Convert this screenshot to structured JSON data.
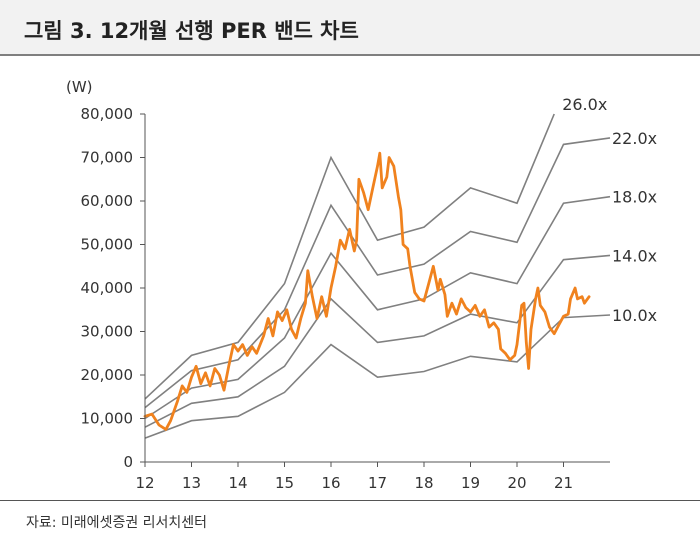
{
  "header": {
    "title": "그림 3. 12개월 선행 PER 밴드 차트"
  },
  "source": {
    "text": "자료: 미래에셋증권 리서치센터"
  },
  "chart_data": {
    "type": "line",
    "ylabel": "(W)",
    "xlim": [
      12,
      22
    ],
    "ylim": [
      0,
      80000
    ],
    "x_ticks": [
      12,
      13,
      14,
      15,
      16,
      17,
      18,
      19,
      20,
      21
    ],
    "x_tick_labels": [
      "12",
      "13",
      "14",
      "15",
      "16",
      "17",
      "18",
      "19",
      "20",
      "21"
    ],
    "y_ticks": [
      0,
      10000,
      20000,
      30000,
      40000,
      50000,
      60000,
      70000,
      80000
    ],
    "y_tick_labels": [
      "0",
      "10,000",
      "20,000",
      "30,000",
      "40,000",
      "50,000",
      "60,000",
      "70,000",
      "80,000"
    ],
    "grid": false,
    "band_color": "#808080",
    "price_color": "#f0821e",
    "bands": [
      {
        "name": "26.0x",
        "points": [
          [
            12,
            14500
          ],
          [
            13,
            24500
          ],
          [
            14,
            27500
          ],
          [
            15,
            41000
          ],
          [
            16,
            70000
          ],
          [
            17,
            51000
          ],
          [
            18,
            54000
          ],
          [
            19,
            63000
          ],
          [
            20,
            59500
          ],
          [
            20.8,
            80000
          ]
        ]
      },
      {
        "name": "22.0x",
        "points": [
          [
            12,
            12500
          ],
          [
            13,
            21000
          ],
          [
            14,
            23500
          ],
          [
            15,
            35000
          ],
          [
            16,
            59000
          ],
          [
            17,
            43000
          ],
          [
            18,
            45500
          ],
          [
            19,
            53000
          ],
          [
            20,
            50500
          ],
          [
            21,
            73000
          ],
          [
            22,
            74500
          ]
        ]
      },
      {
        "name": "18.0x",
        "points": [
          [
            12,
            10000
          ],
          [
            13,
            17000
          ],
          [
            14,
            19000
          ],
          [
            15,
            28500
          ],
          [
            16,
            48000
          ],
          [
            17,
            35000
          ],
          [
            18,
            37500
          ],
          [
            19,
            43500
          ],
          [
            20,
            41000
          ],
          [
            21,
            59500
          ],
          [
            22,
            61000
          ]
        ]
      },
      {
        "name": "14.0x",
        "points": [
          [
            12,
            8000
          ],
          [
            13,
            13500
          ],
          [
            14,
            15000
          ],
          [
            15,
            22000
          ],
          [
            16,
            37500
          ],
          [
            17,
            27500
          ],
          [
            18,
            29000
          ],
          [
            19,
            34000
          ],
          [
            20,
            32000
          ],
          [
            21,
            46500
          ],
          [
            22,
            47500
          ]
        ]
      },
      {
        "name": "10.0x",
        "points": [
          [
            12,
            5500
          ],
          [
            13,
            9500
          ],
          [
            14,
            10500
          ],
          [
            15,
            16000
          ],
          [
            16,
            27000
          ],
          [
            17,
            19500
          ],
          [
            18,
            20800
          ],
          [
            19,
            24300
          ],
          [
            20,
            23000
          ],
          [
            21,
            33200
          ],
          [
            22,
            33800
          ]
        ]
      }
    ],
    "series": [
      {
        "name": "",
        "points": [
          [
            12.0,
            10500
          ],
          [
            12.15,
            11000
          ],
          [
            12.3,
            8500
          ],
          [
            12.45,
            7500
          ],
          [
            12.55,
            9500
          ],
          [
            12.7,
            14000
          ],
          [
            12.8,
            17500
          ],
          [
            12.9,
            16000
          ],
          [
            13.0,
            19500
          ],
          [
            13.1,
            22000
          ],
          [
            13.2,
            18000
          ],
          [
            13.3,
            20500
          ],
          [
            13.4,
            17500
          ],
          [
            13.5,
            21500
          ],
          [
            13.6,
            20000
          ],
          [
            13.7,
            16500
          ],
          [
            13.8,
            22000
          ],
          [
            13.9,
            27000
          ],
          [
            14.0,
            25500
          ],
          [
            14.1,
            27000
          ],
          [
            14.2,
            24500
          ],
          [
            14.3,
            26500
          ],
          [
            14.4,
            25000
          ],
          [
            14.55,
            29000
          ],
          [
            14.65,
            33000
          ],
          [
            14.75,
            29000
          ],
          [
            14.85,
            34500
          ],
          [
            14.95,
            32500
          ],
          [
            15.05,
            35000
          ],
          [
            15.15,
            30500
          ],
          [
            15.25,
            28500
          ],
          [
            15.35,
            33000
          ],
          [
            15.45,
            36500
          ],
          [
            15.5,
            44000
          ],
          [
            15.6,
            38000
          ],
          [
            15.7,
            33000
          ],
          [
            15.8,
            38000
          ],
          [
            15.9,
            33500
          ],
          [
            16.0,
            40000
          ],
          [
            16.1,
            45000
          ],
          [
            16.2,
            51000
          ],
          [
            16.3,
            49000
          ],
          [
            16.4,
            53500
          ],
          [
            16.5,
            48500
          ],
          [
            16.55,
            51000
          ],
          [
            16.6,
            65000
          ],
          [
            16.7,
            62000
          ],
          [
            16.8,
            58000
          ],
          [
            16.9,
            63000
          ],
          [
            17.0,
            68000
          ],
          [
            17.05,
            71000
          ],
          [
            17.1,
            63000
          ],
          [
            17.2,
            65500
          ],
          [
            17.25,
            70000
          ],
          [
            17.35,
            68000
          ],
          [
            17.45,
            61000
          ],
          [
            17.5,
            58000
          ],
          [
            17.55,
            50000
          ],
          [
            17.65,
            49000
          ],
          [
            17.7,
            45000
          ],
          [
            17.8,
            39000
          ],
          [
            17.9,
            37500
          ],
          [
            18.0,
            37000
          ],
          [
            18.1,
            41000
          ],
          [
            18.2,
            45000
          ],
          [
            18.3,
            39500
          ],
          [
            18.35,
            42000
          ],
          [
            18.45,
            38500
          ],
          [
            18.5,
            33500
          ],
          [
            18.6,
            36500
          ],
          [
            18.7,
            34000
          ],
          [
            18.8,
            37500
          ],
          [
            18.9,
            35500
          ],
          [
            19.0,
            34500
          ],
          [
            19.1,
            36000
          ],
          [
            19.2,
            33500
          ],
          [
            19.3,
            35000
          ],
          [
            19.4,
            31000
          ],
          [
            19.5,
            32000
          ],
          [
            19.6,
            30500
          ],
          [
            19.65,
            26000
          ],
          [
            19.75,
            25000
          ],
          [
            19.85,
            23500
          ],
          [
            19.95,
            24500
          ],
          [
            20.0,
            27000
          ],
          [
            20.1,
            36000
          ],
          [
            20.15,
            36500
          ],
          [
            20.2,
            27500
          ],
          [
            20.25,
            21500
          ],
          [
            20.3,
            30500
          ],
          [
            20.4,
            37500
          ],
          [
            20.45,
            40000
          ],
          [
            20.5,
            36000
          ],
          [
            20.6,
            34500
          ],
          [
            20.7,
            31000
          ],
          [
            20.8,
            29500
          ],
          [
            20.9,
            31500
          ],
          [
            21.0,
            33500
          ],
          [
            21.1,
            34000
          ],
          [
            21.15,
            37500
          ],
          [
            21.25,
            40000
          ],
          [
            21.3,
            37500
          ],
          [
            21.4,
            38000
          ],
          [
            21.45,
            36500
          ],
          [
            21.55,
            38000
          ]
        ]
      }
    ]
  }
}
